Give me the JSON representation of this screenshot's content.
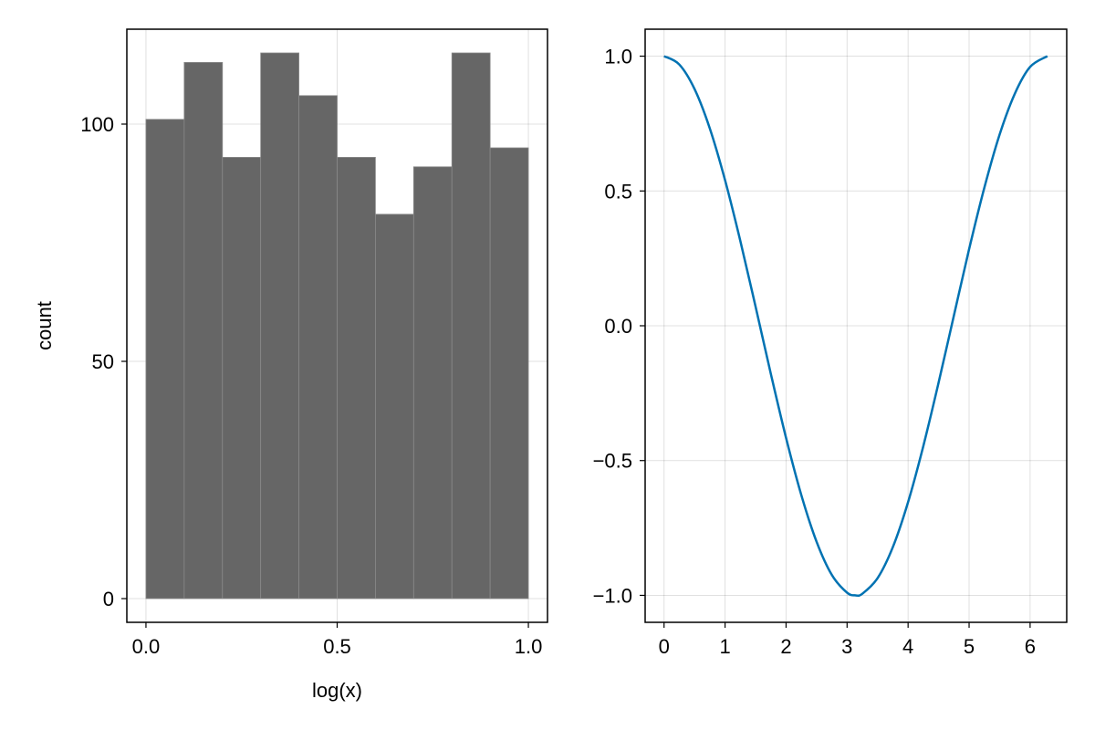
{
  "chart_data": [
    {
      "type": "bar",
      "subtype": "histogram",
      "xlabel": "log(x)",
      "ylabel": "count",
      "xlim": [
        -0.05,
        1.05
      ],
      "ylim": [
        -5,
        120
      ],
      "bin_edges": [
        0.0,
        0.1,
        0.2,
        0.3,
        0.4,
        0.5,
        0.6,
        0.7,
        0.8,
        0.9,
        1.0
      ],
      "values": [
        101,
        113,
        93,
        115,
        106,
        93,
        81,
        91,
        115,
        95
      ],
      "x_ticks": [
        0.0,
        0.5,
        1.0
      ],
      "x_tick_labels": [
        "0.0",
        "0.5",
        "1.0"
      ],
      "y_ticks": [
        0,
        50,
        100
      ],
      "y_tick_labels": [
        "0",
        "50",
        "100"
      ],
      "grid": true,
      "bar_color": "#666666",
      "bar_edge_color": "#8a8a8a"
    },
    {
      "type": "line",
      "function": "cos(x)",
      "x_range": [
        0,
        6.283
      ],
      "xlim": [
        -0.31,
        6.6
      ],
      "ylim": [
        -1.1,
        1.1
      ],
      "x_ticks": [
        0,
        1,
        2,
        3,
        4,
        5,
        6
      ],
      "x_tick_labels": [
        "0",
        "1",
        "2",
        "3",
        "4",
        "5",
        "6"
      ],
      "y_ticks": [
        -1.0,
        -0.5,
        0.0,
        0.5,
        1.0
      ],
      "y_tick_labels": [
        "−1.0",
        "−0.5",
        "0.0",
        "0.5",
        "1.0"
      ],
      "grid": true,
      "line_color": "#0072b2",
      "points": [
        [
          0.0,
          1.0
        ],
        [
          0.25,
          0.969
        ],
        [
          0.5,
          0.878
        ],
        [
          0.75,
          0.732
        ],
        [
          1.0,
          0.54
        ],
        [
          1.25,
          0.315
        ],
        [
          1.5,
          0.071
        ],
        [
          1.75,
          -0.178
        ],
        [
          2.0,
          -0.416
        ],
        [
          2.25,
          -0.628
        ],
        [
          2.5,
          -0.801
        ],
        [
          2.75,
          -0.924
        ],
        [
          3.0,
          -0.99
        ],
        [
          3.1416,
          -1.0
        ],
        [
          3.25,
          -0.994
        ],
        [
          3.5,
          -0.936
        ],
        [
          3.75,
          -0.821
        ],
        [
          4.0,
          -0.654
        ],
        [
          4.25,
          -0.446
        ],
        [
          4.5,
          -0.211
        ],
        [
          4.75,
          0.037
        ],
        [
          5.0,
          0.284
        ],
        [
          5.25,
          0.512
        ],
        [
          5.5,
          0.709
        ],
        [
          5.75,
          0.861
        ],
        [
          6.0,
          0.96
        ],
        [
          6.283,
          1.0
        ]
      ]
    }
  ]
}
